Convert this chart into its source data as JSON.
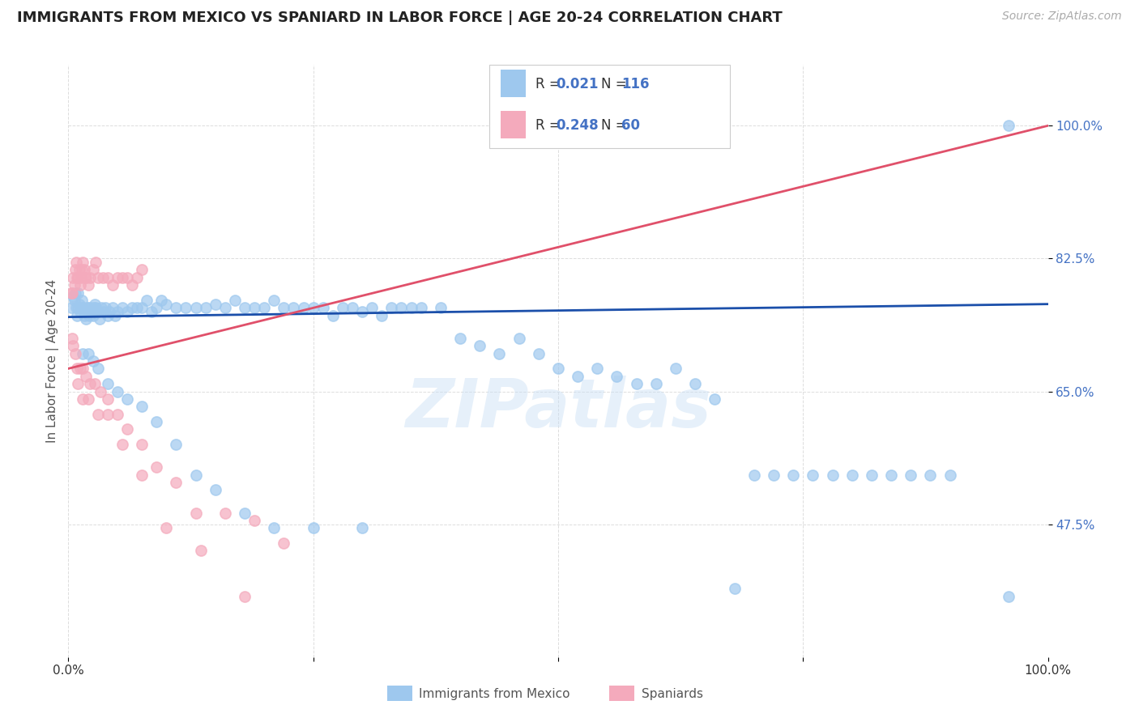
{
  "title": "IMMIGRANTS FROM MEXICO VS SPANIARD IN LABOR FORCE | AGE 20-24 CORRELATION CHART",
  "source": "Source: ZipAtlas.com",
  "ylabel": "In Labor Force | Age 20-24",
  "xlim": [
    0.0,
    1.0
  ],
  "ylim": [
    0.3,
    1.08
  ],
  "ytick_labels": [
    "47.5%",
    "65.0%",
    "82.5%",
    "100.0%"
  ],
  "ytick_values": [
    0.475,
    0.65,
    0.825,
    1.0
  ],
  "blue_color": "#9EC8EE",
  "pink_color": "#F4AABC",
  "trend_blue": "#1B4FAA",
  "trend_pink": "#E0506A",
  "label_blue": "#4472C4",
  "watermark": "ZIPatlas",
  "blue_trend_x": [
    0.0,
    1.0
  ],
  "blue_trend_y": [
    0.748,
    0.765
  ],
  "pink_trend_x": [
    0.0,
    1.0
  ],
  "pink_trend_y": [
    0.68,
    1.0
  ],
  "mexico_x": [
    0.003,
    0.005,
    0.006,
    0.007,
    0.008,
    0.009,
    0.01,
    0.01,
    0.011,
    0.012,
    0.013,
    0.014,
    0.015,
    0.016,
    0.017,
    0.018,
    0.019,
    0.02,
    0.021,
    0.022,
    0.023,
    0.024,
    0.025,
    0.026,
    0.027,
    0.028,
    0.03,
    0.032,
    0.034,
    0.036,
    0.038,
    0.04,
    0.042,
    0.045,
    0.048,
    0.05,
    0.055,
    0.06,
    0.065,
    0.07,
    0.075,
    0.08,
    0.085,
    0.09,
    0.095,
    0.1,
    0.11,
    0.12,
    0.13,
    0.14,
    0.15,
    0.16,
    0.17,
    0.18,
    0.19,
    0.2,
    0.21,
    0.22,
    0.23,
    0.24,
    0.25,
    0.26,
    0.27,
    0.28,
    0.29,
    0.3,
    0.31,
    0.32,
    0.33,
    0.34,
    0.35,
    0.36,
    0.38,
    0.4,
    0.42,
    0.44,
    0.46,
    0.48,
    0.5,
    0.52,
    0.54,
    0.56,
    0.58,
    0.6,
    0.62,
    0.64,
    0.66,
    0.68,
    0.7,
    0.72,
    0.74,
    0.76,
    0.78,
    0.8,
    0.82,
    0.84,
    0.86,
    0.88,
    0.9,
    0.96,
    0.015,
    0.02,
    0.025,
    0.03,
    0.04,
    0.05,
    0.06,
    0.075,
    0.09,
    0.11,
    0.13,
    0.15,
    0.18,
    0.21,
    0.25,
    0.3,
    0.96
  ],
  "mexico_y": [
    0.76,
    0.775,
    0.77,
    0.78,
    0.76,
    0.75,
    0.76,
    0.78,
    0.765,
    0.755,
    0.76,
    0.77,
    0.76,
    0.75,
    0.755,
    0.745,
    0.76,
    0.76,
    0.75,
    0.755,
    0.76,
    0.755,
    0.75,
    0.76,
    0.765,
    0.76,
    0.755,
    0.745,
    0.76,
    0.755,
    0.76,
    0.75,
    0.755,
    0.76,
    0.75,
    0.755,
    0.76,
    0.755,
    0.76,
    0.76,
    0.76,
    0.77,
    0.755,
    0.76,
    0.77,
    0.765,
    0.76,
    0.76,
    0.76,
    0.76,
    0.765,
    0.76,
    0.77,
    0.76,
    0.76,
    0.76,
    0.77,
    0.76,
    0.76,
    0.76,
    0.76,
    0.76,
    0.75,
    0.76,
    0.76,
    0.755,
    0.76,
    0.75,
    0.76,
    0.76,
    0.76,
    0.76,
    0.76,
    0.72,
    0.71,
    0.7,
    0.72,
    0.7,
    0.68,
    0.67,
    0.68,
    0.67,
    0.66,
    0.66,
    0.68,
    0.66,
    0.64,
    0.39,
    0.54,
    0.54,
    0.54,
    0.54,
    0.54,
    0.54,
    0.54,
    0.54,
    0.54,
    0.54,
    0.54,
    1.0,
    0.7,
    0.7,
    0.69,
    0.68,
    0.66,
    0.65,
    0.64,
    0.63,
    0.61,
    0.58,
    0.54,
    0.52,
    0.49,
    0.47,
    0.47,
    0.47,
    0.38
  ],
  "spain_x": [
    0.003,
    0.004,
    0.005,
    0.006,
    0.007,
    0.008,
    0.009,
    0.01,
    0.011,
    0.012,
    0.013,
    0.014,
    0.015,
    0.016,
    0.017,
    0.018,
    0.02,
    0.022,
    0.025,
    0.028,
    0.03,
    0.035,
    0.04,
    0.045,
    0.05,
    0.055,
    0.06,
    0.065,
    0.07,
    0.075,
    0.004,
    0.005,
    0.007,
    0.009,
    0.012,
    0.015,
    0.018,
    0.022,
    0.027,
    0.033,
    0.04,
    0.05,
    0.06,
    0.075,
    0.09,
    0.11,
    0.13,
    0.16,
    0.19,
    0.22,
    0.01,
    0.015,
    0.02,
    0.03,
    0.04,
    0.055,
    0.075,
    0.1,
    0.135,
    0.18
  ],
  "spain_y": [
    0.78,
    0.78,
    0.8,
    0.79,
    0.81,
    0.82,
    0.8,
    0.8,
    0.81,
    0.79,
    0.8,
    0.81,
    0.82,
    0.81,
    0.8,
    0.8,
    0.79,
    0.8,
    0.81,
    0.82,
    0.8,
    0.8,
    0.8,
    0.79,
    0.8,
    0.8,
    0.8,
    0.79,
    0.8,
    0.81,
    0.72,
    0.71,
    0.7,
    0.68,
    0.68,
    0.68,
    0.67,
    0.66,
    0.66,
    0.65,
    0.64,
    0.62,
    0.6,
    0.58,
    0.55,
    0.53,
    0.49,
    0.49,
    0.48,
    0.45,
    0.66,
    0.64,
    0.64,
    0.62,
    0.62,
    0.58,
    0.54,
    0.47,
    0.44,
    0.38
  ],
  "background_color": "#ffffff",
  "grid_color": "#dddddd"
}
